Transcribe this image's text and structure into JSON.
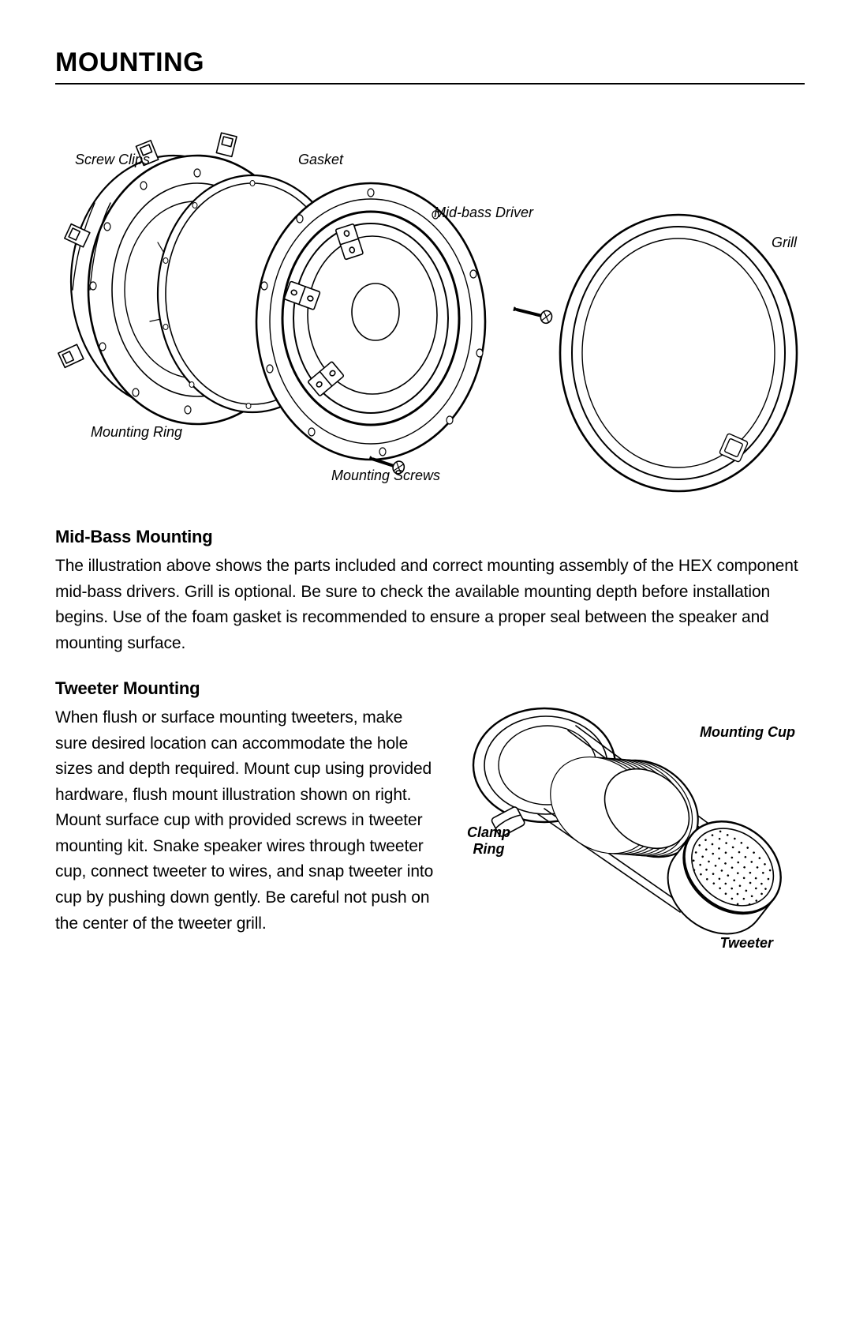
{
  "heading": "MOUNTING",
  "midbass": {
    "callouts": {
      "screw_clips": "Screw Clips",
      "gasket": "Gasket",
      "midbass_driver": "Mid-bass Driver",
      "grill": "Grill",
      "mounting_ring": "Mounting Ring",
      "mounting_screws": "Mounting Screws"
    },
    "subheading": "Mid-Bass Mounting",
    "body": "The illustration above shows the parts included and correct mounting assembly of the HEX component mid-bass drivers.  Grill is optional.  Be sure to check the available mounting depth before installation begins.  Use of the foam gasket is recommended to ensure a proper seal between the speaker and mounting surface."
  },
  "tweeter": {
    "subheading": "Tweeter Mounting",
    "body": "When flush or surface mounting tweeters, make sure desired location can accommodate the hole sizes and depth required.  Mount cup using provided hardware, flush mount illustration shown on right.   Mount surface cup with provided screws in tweeter mounting kit.  Snake speaker wires through tweeter cup, connect tweeter to wires,  and snap tweeter into cup by pushing down gently.  Be careful not push on the center of the tweeter grill.",
    "callouts": {
      "mounting_cup": "Mounting Cup",
      "clamp_ring": "Clamp\nRing",
      "tweeter": "Tweeter"
    }
  },
  "style": {
    "stroke": "#000000",
    "stroke_thin": 1.4,
    "stroke_med": 2.0,
    "stroke_thick": 2.6,
    "fill": "#ffffff"
  }
}
